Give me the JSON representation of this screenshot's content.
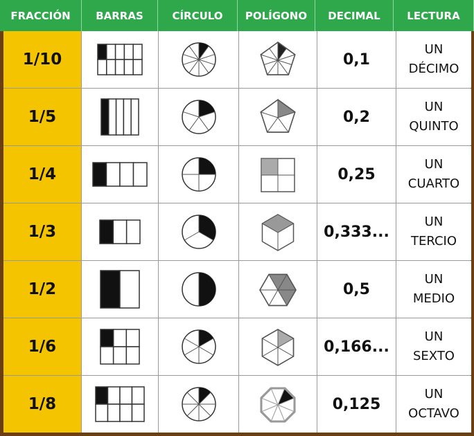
{
  "table": {
    "header": [
      "FRACCIÓN",
      "BARRAS",
      "CÍRCULO",
      "POLÍGONO",
      "DECIMAL",
      "LECTURA"
    ],
    "rows": [
      {
        "fraction": "1/10",
        "decimal": "0,1",
        "reading": [
          "UN",
          "DÉCIMO"
        ]
      },
      {
        "fraction": "1/5",
        "decimal": "0,2",
        "reading": [
          "UN",
          "QUINTO"
        ]
      },
      {
        "fraction": "1/4",
        "decimal": "0,25",
        "reading": [
          "UN",
          "CUARTO"
        ]
      },
      {
        "fraction": "1/3",
        "decimal": "0,333...",
        "reading": [
          "UN",
          "TERCIO"
        ]
      },
      {
        "fraction": "1/2",
        "decimal": "0,5",
        "reading": [
          "UN",
          "MEDIO"
        ]
      },
      {
        "fraction": "1/6",
        "decimal": "0,166...",
        "reading": [
          "UN",
          "SEXTO"
        ]
      },
      {
        "fraction": "1/8",
        "decimal": "0,125",
        "reading": [
          "UN",
          "OCTAVO"
        ]
      }
    ]
  }
}
